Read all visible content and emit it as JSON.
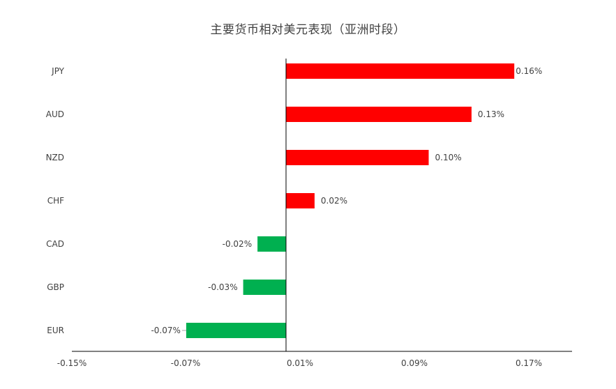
{
  "chart_data": {
    "type": "bar",
    "orientation": "horizontal",
    "title": "主要货币相对美元表现（亚洲时段）",
    "categories": [
      "JPY",
      "AUD",
      "NZD",
      "CHF",
      "CAD",
      "GBP",
      "EUR"
    ],
    "values": [
      0.16,
      0.13,
      0.1,
      0.02,
      -0.02,
      -0.03,
      -0.07
    ],
    "value_labels": [
      "0.16%",
      "0.13%",
      "0.10%",
      "0.02%",
      "-0.02%",
      "-0.03%",
      "-0.07%"
    ],
    "x_ticks": [
      -0.15,
      -0.07,
      0.01,
      0.09,
      0.17
    ],
    "x_tick_labels": [
      "-0.15%",
      "-0.07%",
      "0.01%",
      "0.09%",
      "0.17%"
    ],
    "xlim": [
      -0.15,
      0.2
    ],
    "grid": false,
    "legend": "none",
    "colors": {
      "positive": "#ff0000",
      "negative": "#00b050",
      "axis": "#000000",
      "text": "#404040"
    }
  }
}
